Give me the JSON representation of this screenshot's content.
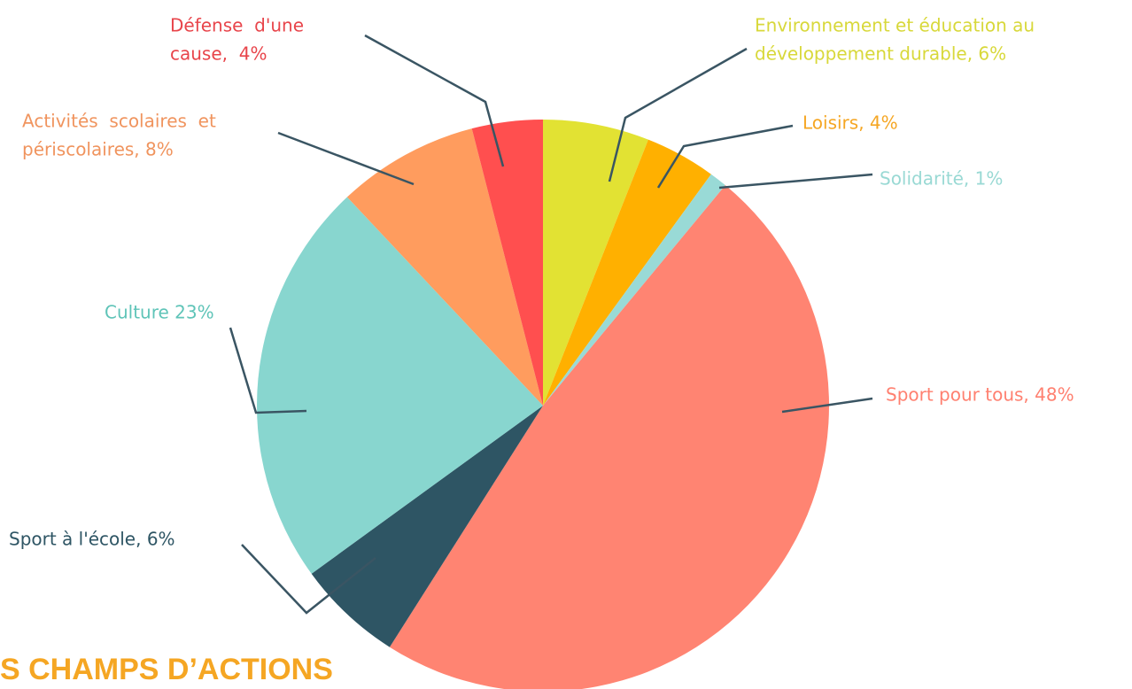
{
  "chart_data": {
    "type": "pie",
    "values": [
      6,
      4,
      1,
      48,
      6,
      23,
      8,
      4
    ],
    "value_labels": [
      [
        "Environnement et éducation au",
        "développement durable, 6%"
      ],
      [
        "Loisirs, 4%"
      ],
      [
        "Solidarité, 1%"
      ],
      [
        "Sport pour tous, 48%"
      ],
      [
        "Sport à l'école, 6%"
      ],
      [
        "Culture 23%"
      ],
      [
        "Activités  scolaires  et",
        "périscolaires, 8%"
      ],
      [
        "Défense  d'une",
        "cause,  4%"
      ]
    ],
    "colors": [
      "#e2e233",
      "#ffb000",
      "#99dad6",
      "#ff8472",
      "#2e5564",
      "#88d6cf",
      "#ff9c5e",
      "#ff4f4f"
    ],
    "label_colors": [
      "#d8d83a",
      "#f5a623",
      "#99d9d4",
      "#ff8070",
      "#2e5564",
      "#5fc4b8",
      "#f0945e",
      "#e8444a"
    ]
  },
  "heading": "S CHAMPS D’ACTIONS"
}
